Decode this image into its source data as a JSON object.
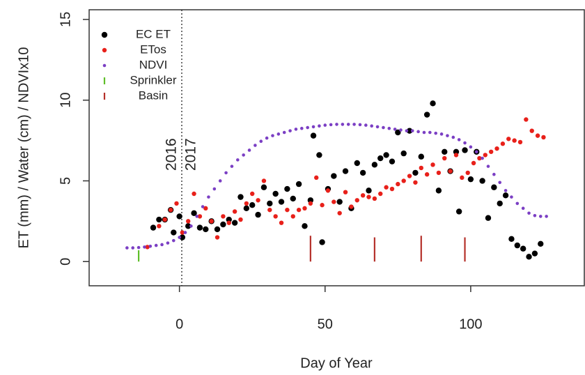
{
  "chart_data": {
    "type": "scatter",
    "xlabel": "Day of Year",
    "ylabel": "ET (mm) / Water (cm) / NDVIx10",
    "xlim": [
      -31,
      139
    ],
    "ylim": [
      -1.5,
      15.6
    ],
    "xticks": [
      0,
      50,
      100
    ],
    "yticks": [
      0,
      5,
      10,
      15
    ],
    "legend": "upper left",
    "vline": 0.8,
    "annotations": [
      "2016",
      "2017"
    ],
    "series": [
      {
        "name": "EC ET",
        "color": "#000000",
        "marker": "dot",
        "x": [
          -9,
          -7,
          -5,
          -3,
          -2,
          0,
          1,
          3,
          5,
          7,
          9,
          11,
          13,
          15,
          17,
          19,
          21,
          23,
          25,
          27,
          29,
          31,
          33,
          35,
          37,
          39,
          41,
          43,
          45,
          46,
          48,
          49,
          51,
          53,
          55,
          57,
          59,
          61,
          63,
          65,
          67,
          69,
          71,
          73,
          75,
          77,
          79,
          81,
          83,
          85,
          87,
          89,
          91,
          93,
          95,
          96,
          98,
          100,
          102,
          104,
          106,
          108,
          110,
          112,
          114,
          116,
          118,
          120,
          122,
          124
        ],
        "values": [
          2.1,
          2.6,
          2.6,
          3.2,
          1.8,
          2.8,
          1.5,
          2.2,
          3.0,
          2.1,
          2.0,
          2.5,
          2.0,
          2.3,
          2.6,
          2.4,
          4.0,
          3.3,
          3.5,
          2.9,
          4.6,
          3.6,
          4.2,
          3.7,
          4.5,
          3.9,
          4.8,
          2.2,
          3.8,
          7.8,
          6.6,
          1.2,
          4.5,
          5.3,
          3.7,
          5.6,
          3.3,
          6.1,
          5.5,
          4.4,
          6.0,
          6.4,
          6.6,
          6.2,
          8.0,
          6.7,
          8.1,
          5.5,
          6.5,
          9.1,
          9.8,
          4.4,
          6.8,
          5.6,
          6.8,
          3.1,
          6.9,
          5.1,
          6.8,
          5.0,
          2.7,
          4.6,
          3.6,
          4.1,
          1.4,
          1.0,
          0.8,
          0.3,
          0.5,
          1.1
        ]
      },
      {
        "name": "ETos",
        "color": "#e8201a",
        "marker": "dot",
        "x": [
          -11,
          -7,
          -5,
          -3,
          -1,
          1,
          3,
          5,
          7,
          9,
          11,
          13,
          15,
          17,
          19,
          21,
          23,
          25,
          27,
          29,
          31,
          33,
          35,
          37,
          39,
          41,
          43,
          45,
          47,
          49,
          51,
          53,
          55,
          57,
          59,
          61,
          63,
          65,
          67,
          69,
          71,
          73,
          75,
          77,
          79,
          81,
          83,
          85,
          87,
          89,
          91,
          93,
          95,
          97,
          99,
          101,
          103,
          105,
          107,
          109,
          111,
          113,
          115,
          117,
          119,
          121,
          123,
          125
        ],
        "values": [
          0.9,
          2.2,
          2.6,
          3.2,
          3.6,
          1.8,
          2.5,
          4.2,
          2.8,
          3.3,
          2.5,
          1.5,
          2.8,
          2.4,
          3.1,
          2.6,
          3.6,
          4.2,
          3.8,
          5.0,
          3.2,
          2.8,
          2.4,
          3.2,
          2.8,
          3.2,
          3.3,
          3.6,
          5.2,
          3.5,
          4.4,
          3.7,
          3.0,
          4.3,
          3.4,
          3.8,
          4.1,
          4.0,
          3.9,
          4.2,
          4.6,
          4.5,
          4.8,
          5.0,
          5.3,
          4.9,
          5.8,
          5.4,
          6.0,
          5.5,
          6.4,
          5.6,
          6.6,
          5.2,
          5.5,
          6.1,
          6.4,
          6.6,
          6.8,
          7.0,
          7.3,
          7.6,
          7.5,
          7.4,
          8.8,
          8.1,
          7.8,
          7.7
        ]
      },
      {
        "name": "NDVI",
        "color": "#7b3fc4",
        "marker": "dot",
        "x": [
          -18,
          -16,
          -14,
          -12,
          -10,
          -8,
          -6,
          -4,
          -2,
          0,
          2,
          4,
          6,
          8,
          10,
          12,
          14,
          16,
          18,
          20,
          22,
          24,
          26,
          28,
          30,
          32,
          34,
          36,
          38,
          40,
          42,
          44,
          46,
          48,
          50,
          52,
          54,
          56,
          58,
          60,
          62,
          64,
          66,
          68,
          70,
          72,
          74,
          76,
          78,
          80,
          82,
          84,
          86,
          88,
          90,
          92,
          94,
          96,
          98,
          100,
          102,
          104,
          106,
          108,
          110,
          112,
          114,
          116,
          118,
          120,
          122,
          124,
          126
        ],
        "values": [
          0.85,
          0.85,
          0.87,
          0.9,
          0.95,
          1.0,
          1.05,
          1.15,
          1.3,
          1.5,
          1.8,
          2.2,
          2.8,
          3.4,
          4.0,
          4.5,
          5.0,
          5.5,
          5.9,
          6.3,
          6.6,
          6.9,
          7.2,
          7.45,
          7.65,
          7.8,
          7.9,
          8.0,
          8.1,
          8.2,
          8.25,
          8.3,
          8.35,
          8.4,
          8.45,
          8.48,
          8.5,
          8.5,
          8.5,
          8.5,
          8.48,
          8.45,
          8.4,
          8.35,
          8.3,
          8.25,
          8.2,
          8.15,
          8.1,
          8.1,
          8.05,
          8.0,
          8.0,
          7.95,
          7.9,
          7.8,
          7.7,
          7.55,
          7.35,
          7.1,
          6.8,
          6.4,
          5.9,
          5.4,
          4.9,
          4.4,
          4.0,
          3.6,
          3.3,
          3.0,
          2.85,
          2.8,
          2.8
        ]
      },
      {
        "name": "Sprinkler",
        "color": "#5fbf2a",
        "marker": "segment",
        "x": [
          -14
        ],
        "values": [
          0.7
        ]
      },
      {
        "name": "Basin",
        "color": "#b5302a",
        "marker": "segment",
        "x": [
          45,
          67,
          83,
          98
        ],
        "values": [
          1.6,
          1.5,
          1.6,
          1.5
        ]
      }
    ]
  }
}
